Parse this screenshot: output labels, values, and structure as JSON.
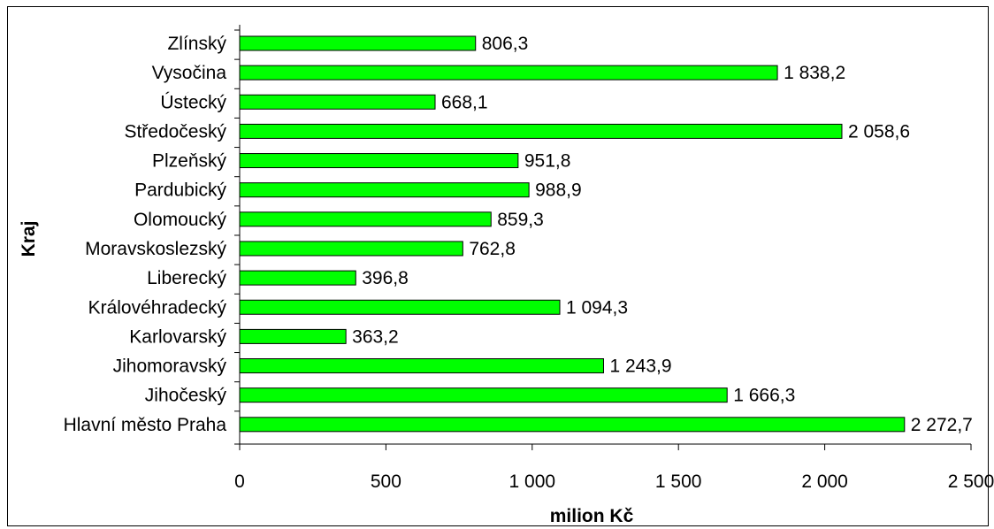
{
  "chart_data": {
    "type": "bar",
    "orientation": "horizontal",
    "xlabel": "milion Kč",
    "ylabel": "Kraj",
    "xlim": [
      0,
      2500
    ],
    "xticks": [
      0,
      500,
      1000,
      1500,
      2000,
      2500
    ],
    "xtick_labels": [
      "0",
      "500",
      "1 000",
      "1 500",
      "2 000",
      "2 500"
    ],
    "grid": false,
    "legend": "none",
    "bar_color": "#00ff00",
    "categories": [
      "Zlínský",
      "Vysočina",
      "Ústecký",
      "Středočeský",
      "Plzeňský",
      "Pardubický",
      "Olomoucký",
      "Moravskoslezský",
      "Liberecký",
      "Královéhradecký",
      "Karlovarský",
      "Jihomoravský",
      "Jihočeský",
      "Hlavní město Praha"
    ],
    "values": [
      806.3,
      1838.2,
      668.1,
      2058.6,
      951.8,
      988.9,
      859.3,
      762.8,
      396.8,
      1094.3,
      363.2,
      1243.9,
      1666.3,
      2272.7
    ],
    "value_labels": [
      "806,3",
      "1 838,2",
      "668,1",
      "2 058,6",
      "951,8",
      "988,9",
      "859,3",
      "762,8",
      "396,8",
      "1 094,3",
      "363,2",
      "1 243,9",
      "1 666,3",
      "2 272,7"
    ]
  }
}
